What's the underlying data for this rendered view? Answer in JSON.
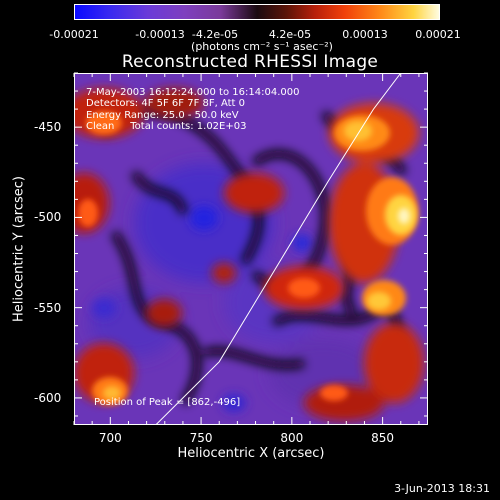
{
  "colorbar": {
    "tick_labels": [
      "-0.00021",
      "-0.00013",
      "-4.2e-05",
      "4.2e-05",
      "0.00013",
      "0.00021"
    ],
    "unit": "(photons cm⁻² s⁻¹ asec⁻²)",
    "min": -0.00021,
    "max": 0.00021
  },
  "chart_data": {
    "type": "heatmap",
    "title": "Reconstructed RHESSI Image",
    "xlabel": "Heliocentric X (arcsec)",
    "ylabel": "Heliocentric Y (arcsec)",
    "xlim": [
      680,
      875
    ],
    "ylim": [
      -615,
      -420
    ],
    "x_ticks": [
      700,
      750,
      800,
      850
    ],
    "y_ticks": [
      -600,
      -550,
      -500,
      -450
    ],
    "annotations": [
      "7-May-2003 16:12:24.000 to 16:14:04.000",
      "Detectors: 4F 5F 6F 7F 8F, Att 0",
      "Energy Range: 25.0 - 50.0 keV",
      "Clean     Total counts: 1.02E+03"
    ],
    "peak_label": "Position of Peak = [862,-496]",
    "peak_position": [
      862,
      -496
    ],
    "limb_curve": [
      [
        725,
        -615
      ],
      [
        760,
        -580
      ],
      [
        790,
        -530
      ],
      [
        820,
        -480
      ],
      [
        845,
        -440
      ],
      [
        860,
        -420
      ]
    ],
    "hot_spots": [
      {
        "x": 862,
        "y": -496,
        "intensity": 1.0
      },
      {
        "x": 838,
        "y": -447,
        "intensity": 0.8
      },
      {
        "x": 845,
        "y": -543,
        "intensity": 0.85
      },
      {
        "x": 733,
        "y": -598,
        "intensity": 0.55
      }
    ]
  },
  "footer": {
    "date": "3-Jun-2013 18:31"
  }
}
